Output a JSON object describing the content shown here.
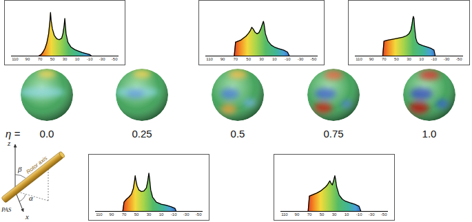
{
  "chart_data": [
    {
      "type": "area",
      "x": [
        72,
        68,
        65,
        62,
        59,
        56,
        54,
        53,
        52,
        50,
        47,
        43,
        39,
        35,
        33,
        31,
        30,
        28,
        25,
        20,
        14,
        8,
        2,
        -4,
        -10,
        -13
      ],
      "values": [
        0,
        3,
        8,
        15,
        26,
        45,
        70,
        88,
        72,
        55,
        42,
        35,
        33,
        36,
        45,
        62,
        76,
        45,
        28,
        18,
        13,
        10,
        7,
        5,
        3,
        0
      ],
      "xlim": [
        116,
        -57
      ],
      "xticks": [
        110,
        90,
        70,
        50,
        30,
        10,
        -10,
        -30,
        -50
      ],
      "ylim": [
        0,
        100
      ],
      "tick_labels": "x"
    },
    {
      "type": "area",
      "x": [
        72,
        70,
        66,
        62,
        58,
        55,
        53,
        52,
        51,
        49,
        46,
        42,
        38,
        34,
        32,
        30,
        29,
        27,
        24,
        18,
        10,
        2,
        -6,
        -12,
        -14
      ],
      "values": [
        0,
        18,
        24,
        28,
        34,
        45,
        60,
        70,
        62,
        50,
        42,
        39,
        40,
        46,
        58,
        75,
        66,
        42,
        28,
        18,
        14,
        12,
        9,
        6,
        0
      ],
      "xlim": [
        116,
        -57
      ],
      "xticks": [
        110,
        90,
        70,
        50,
        30,
        10,
        -10,
        -30,
        -50
      ],
      "ylim": [
        0,
        100
      ],
      "tick_labels": "x"
    },
    {
      "type": "area",
      "x": [
        72,
        70,
        66,
        62,
        58,
        54,
        50,
        47,
        45,
        43,
        40,
        37,
        34,
        31,
        29,
        27,
        26,
        24,
        20,
        15,
        10,
        4,
        -4,
        -10,
        -13
      ],
      "values": [
        0,
        28,
        30,
        32,
        36,
        40,
        46,
        52,
        58,
        55,
        48,
        45,
        47,
        55,
        63,
        70,
        64,
        45,
        30,
        22,
        18,
        15,
        12,
        8,
        0
      ],
      "xlim": [
        116,
        -57
      ],
      "xticks": [
        110,
        90,
        70,
        50,
        30,
        10,
        -10,
        -30,
        -50
      ],
      "ylim": [
        0,
        100
      ],
      "tick_labels": "x"
    },
    {
      "type": "area",
      "x": [
        72,
        70,
        64,
        58,
        52,
        48,
        44,
        41,
        39,
        37,
        35,
        33,
        31,
        29,
        28,
        26,
        22,
        17,
        12,
        5,
        -3,
        -10,
        -13
      ],
      "values": [
        0,
        30,
        33,
        36,
        40,
        44,
        48,
        52,
        56,
        60,
        55,
        52,
        60,
        70,
        64,
        48,
        32,
        24,
        20,
        17,
        14,
        10,
        0
      ],
      "xlim": [
        116,
        -57
      ],
      "xticks": [
        110,
        90,
        70,
        50,
        30,
        10,
        -10,
        -30,
        -50
      ],
      "ylim": [
        0,
        100
      ],
      "tick_labels": "x"
    },
    {
      "type": "area",
      "x": [
        72,
        70,
        64,
        56,
        48,
        40,
        34,
        30,
        27,
        25,
        24,
        23,
        22,
        21,
        19,
        17,
        14,
        8,
        0,
        -6,
        -10,
        -12
      ],
      "values": [
        0,
        30,
        32,
        34,
        36,
        38,
        41,
        45,
        52,
        65,
        74,
        80,
        76,
        58,
        36,
        28,
        24,
        21,
        18,
        15,
        12,
        0
      ],
      "xlim": [
        116,
        -57
      ],
      "xticks": [
        110,
        90,
        70,
        50,
        30,
        10,
        -10,
        -30,
        -50
      ],
      "ylim": [
        0,
        100
      ],
      "tick_labels": "x"
    }
  ],
  "eta_label": "η =",
  "eta_values": [
    "0.0",
    "0.25",
    "0.5",
    "0.75",
    "1.0"
  ],
  "inset": {
    "z_label": "z",
    "x_label": "x",
    "beta_label": "β",
    "alpha_label": "α",
    "rotor_label": "Rotor axis",
    "frame_label": "PAS"
  }
}
